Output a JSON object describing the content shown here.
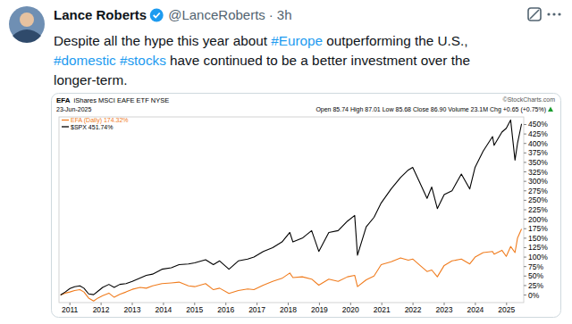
{
  "post": {
    "name": "Lance Roberts",
    "handle": "@LanceRoberts",
    "separator": "·",
    "time": "3h",
    "text_lines": [
      [
        {
          "text": "Despite all the hype this year about ",
          "link": false
        },
        {
          "text": "#Europe",
          "link": true
        },
        {
          "text": " outperforming the U.S.,",
          "link": false
        }
      ],
      [
        {
          "text": "#domestic",
          "link": true
        },
        {
          "text": " ",
          "link": false
        },
        {
          "text": "#stocks",
          "link": true
        },
        {
          "text": " have continued to be a better investment over the",
          "link": false
        }
      ],
      [
        {
          "text": "longer-term.",
          "link": false
        }
      ]
    ]
  },
  "chart_data": {
    "type": "line",
    "title": "EFA",
    "subtitle": "iShares MSCI EAFE ETF NYSE",
    "annotations": [
      "©StockCharts.com",
      "23-Jun-2025",
      "Open 85.74 High 87.01 Low 85.68 Close 86.90 Volume 23.1M Chg +0.65 (+0.75%)"
    ],
    "x": [
      2010.7,
      2010.85,
      2011.0,
      2011.15,
      2011.32,
      2011.45,
      2011.6,
      2011.76,
      2011.9,
      2012.05,
      2012.25,
      2012.42,
      2012.6,
      2012.8,
      2013.0,
      2013.25,
      2013.45,
      2013.65,
      2013.95,
      2014.25,
      2014.5,
      2014.8,
      2015.0,
      2015.35,
      2015.6,
      2015.8,
      2016.1,
      2016.4,
      2016.7,
      2016.9,
      2017.2,
      2017.5,
      2017.8,
      2018.05,
      2018.15,
      2018.45,
      2018.75,
      2018.98,
      2019.3,
      2019.6,
      2019.9,
      2020.13,
      2020.22,
      2020.5,
      2020.75,
      2020.98,
      2021.3,
      2021.6,
      2021.85,
      2021.99,
      2022.2,
      2022.45,
      2022.6,
      2022.78,
      2023.0,
      2023.25,
      2023.55,
      2023.82,
      2023.99,
      2024.25,
      2024.55,
      2024.6,
      2024.85,
      2024.99,
      2025.13,
      2025.27,
      2025.35,
      2025.48
    ],
    "series": [
      {
        "name": "EFA (Daily) 174.32%",
        "color": "#f07c1e",
        "values": [
          0,
          5,
          8,
          12,
          14,
          8,
          -8,
          -16,
          -8,
          -2,
          5,
          -6,
          2,
          8,
          15,
          20,
          18,
          24,
          30,
          32,
          34,
          24,
          22,
          30,
          14,
          18,
          4,
          12,
          16,
          14,
          26,
          36,
          44,
          58,
          46,
          48,
          42,
          26,
          42,
          36,
          48,
          52,
          22,
          40,
          50,
          80,
          88,
          98,
          92,
          95,
          80,
          62,
          66,
          48,
          78,
          90,
          95,
          82,
          100,
          112,
          115,
          108,
          118,
          102,
          128,
          112,
          150,
          174.32
        ]
      },
      {
        "name": "$SPX 451.74%",
        "color": "#000000",
        "values": [
          0,
          8,
          17,
          22,
          24,
          18,
          3,
          1,
          10,
          20,
          28,
          20,
          28,
          30,
          36,
          45,
          52,
          55,
          68,
          72,
          80,
          82,
          85,
          93,
          80,
          90,
          68,
          90,
          95,
          100,
          115,
          125,
          140,
          165,
          140,
          150,
          170,
          115,
          165,
          170,
          195,
          210,
          105,
          180,
          205,
          243,
          280,
          310,
          330,
          337,
          300,
          255,
          285,
          228,
          265,
          275,
          319,
          280,
          337,
          380,
          418,
          395,
          430,
          440,
          462,
          356,
          400,
          451.74
        ]
      }
    ],
    "xlim": [
      2010.65,
      2025.55
    ],
    "xticks": [
      2011,
      2012,
      2013,
      2014,
      2015,
      2016,
      2017,
      2018,
      2019,
      2020,
      2021,
      2022,
      2023,
      2024,
      2025
    ],
    "ylim": [
      -20,
      470
    ],
    "yticks": [
      {
        "value": 0,
        "label": "0%"
      },
      {
        "value": 25,
        "label": "25%"
      },
      {
        "value": 50,
        "label": "50%"
      },
      {
        "value": 75,
        "label": "75%"
      },
      {
        "value": 100,
        "label": "100%"
      },
      {
        "value": 125,
        "label": "125%"
      },
      {
        "value": 150,
        "label": "150%"
      },
      {
        "value": 175,
        "label": "175%"
      },
      {
        "value": 200,
        "label": "200%"
      },
      {
        "value": 225,
        "label": "225%"
      },
      {
        "value": 250,
        "label": "250%"
      },
      {
        "value": 275,
        "label": "275%"
      },
      {
        "value": 300,
        "label": "300%"
      },
      {
        "value": 325,
        "label": "325%"
      },
      {
        "value": 350,
        "label": "350%"
      },
      {
        "value": 375,
        "label": "375%"
      },
      {
        "value": 400,
        "label": "400%"
      },
      {
        "value": 425,
        "label": "425%"
      },
      {
        "value": 450,
        "label": "450%"
      }
    ],
    "grid": false,
    "legend": "top-left"
  }
}
